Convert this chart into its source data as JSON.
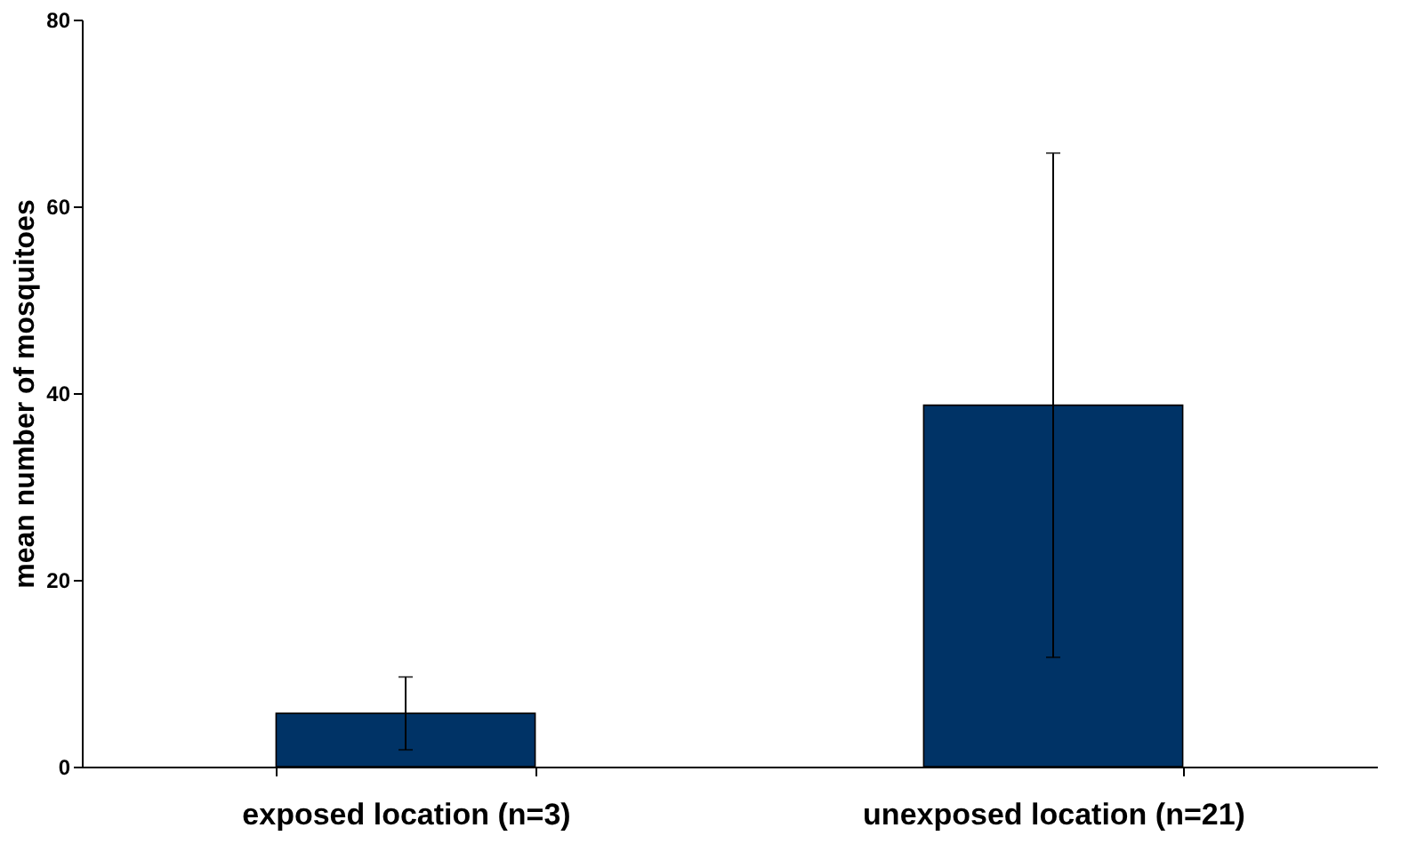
{
  "chart_data": {
    "type": "bar",
    "ylabel": "mean number of mosquitoes",
    "categories": [
      "exposed location (n=3)",
      "unexposed location (n=21)"
    ],
    "series": [
      {
        "color": "#003366",
        "values": [
          5.7,
          38.7
        ],
        "errors": [
          3.9,
          27
        ]
      }
    ],
    "ylim": [
      0,
      80
    ],
    "yticks": [
      0,
      20,
      40,
      60,
      80
    ],
    "grid": false,
    "legend": false
  }
}
